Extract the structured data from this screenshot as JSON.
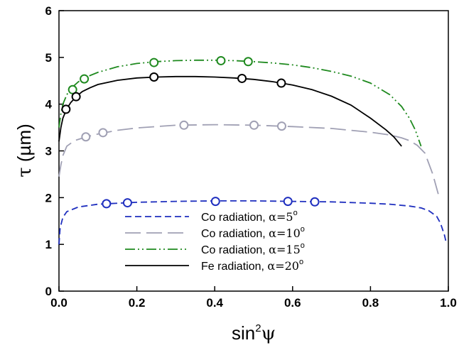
{
  "chart_data": {
    "type": "line",
    "title": "",
    "xlabel": {
      "base": "sin",
      "sup": "2",
      "symbol": "ψ"
    },
    "ylabel": {
      "symbol": "τ",
      "unit": "(µm)"
    },
    "xlim": [
      0.0,
      1.0
    ],
    "ylim": [
      0,
      6
    ],
    "xticks": [
      "0.0",
      "0.2",
      "0.4",
      "0.6",
      "0.8",
      "1.0"
    ],
    "yticks": [
      "0",
      "1",
      "2",
      "3",
      "4",
      "5",
      "6"
    ],
    "grid": false,
    "legend_position": "bottom-center",
    "series": [
      {
        "name": "Co radiation, α=5°",
        "legend_prefix": "Co radiation, ",
        "legend_alpha": "α=5",
        "legend_sup": "o",
        "color": "#1f2fbf",
        "dash": "dashed",
        "line": {
          "x": [
            0.0,
            0.003,
            0.01,
            0.02,
            0.05,
            0.1,
            0.2,
            0.3,
            0.4,
            0.5,
            0.6,
            0.7,
            0.8,
            0.85,
            0.9,
            0.93,
            0.95,
            0.97,
            0.98,
            0.99,
            0.995
          ],
          "y": [
            1.0,
            1.35,
            1.58,
            1.7,
            1.8,
            1.86,
            1.9,
            1.92,
            1.93,
            1.93,
            1.92,
            1.91,
            1.88,
            1.86,
            1.82,
            1.78,
            1.72,
            1.6,
            1.45,
            1.2,
            1.02
          ]
        },
        "markers": {
          "x": [
            0.122,
            0.176,
            0.402,
            0.588,
            0.657
          ],
          "y": [
            1.87,
            1.89,
            1.92,
            1.92,
            1.91
          ]
        }
      },
      {
        "name": "Co radiation, α=10°",
        "legend_prefix": "Co radiation, ",
        "legend_alpha": "α=10",
        "legend_sup": "o",
        "color": "#a0a0b4",
        "dash": "longdash",
        "line": {
          "x": [
            0.0,
            0.005,
            0.01,
            0.02,
            0.04,
            0.07,
            0.1,
            0.15,
            0.2,
            0.3,
            0.4,
            0.5,
            0.6,
            0.7,
            0.8,
            0.85,
            0.88,
            0.9,
            0.92,
            0.94,
            0.96,
            0.975
          ],
          "y": [
            2.45,
            2.7,
            2.9,
            3.1,
            3.22,
            3.3,
            3.36,
            3.44,
            3.49,
            3.55,
            3.56,
            3.55,
            3.52,
            3.48,
            3.4,
            3.34,
            3.28,
            3.22,
            3.12,
            2.95,
            2.5,
            2.05
          ]
        },
        "markers": {
          "x": [
            0.069,
            0.113,
            0.321,
            0.501,
            0.572
          ],
          "y": [
            3.3,
            3.39,
            3.55,
            3.55,
            3.53
          ]
        }
      },
      {
        "name": "Co radiation, α=15°",
        "legend_prefix": "Co radiation, ",
        "legend_alpha": "α=15",
        "legend_sup": "o",
        "color": "#1f8a1f",
        "dash": "dashdotdot",
        "line": {
          "x": [
            0.0,
            0.005,
            0.01,
            0.02,
            0.03,
            0.05,
            0.07,
            0.1,
            0.15,
            0.2,
            0.25,
            0.3,
            0.35,
            0.4,
            0.45,
            0.5,
            0.55,
            0.6,
            0.65,
            0.7,
            0.75,
            0.8,
            0.85,
            0.88,
            0.9,
            0.915,
            0.93
          ],
          "y": [
            3.5,
            3.8,
            4.0,
            4.2,
            4.33,
            4.48,
            4.58,
            4.68,
            4.8,
            4.87,
            4.91,
            4.93,
            4.94,
            4.94,
            4.93,
            4.91,
            4.88,
            4.84,
            4.78,
            4.7,
            4.6,
            4.45,
            4.2,
            3.95,
            3.7,
            3.45,
            3.1
          ]
        },
        "markers": {
          "x": [
            0.035,
            0.065,
            0.244,
            0.416,
            0.486
          ],
          "y": [
            4.31,
            4.54,
            4.89,
            4.93,
            4.91
          ]
        }
      },
      {
        "name": "Fe radiation, α=20°",
        "legend_prefix": "Fe radiation, ",
        "legend_alpha": "α=20",
        "legend_sup": "o",
        "color": "#000000",
        "dash": "solid",
        "line": {
          "x": [
            0.0,
            0.005,
            0.01,
            0.02,
            0.03,
            0.045,
            0.06,
            0.08,
            0.1,
            0.15,
            0.2,
            0.25,
            0.3,
            0.35,
            0.4,
            0.45,
            0.5,
            0.55,
            0.6,
            0.65,
            0.7,
            0.75,
            0.8,
            0.84,
            0.86,
            0.88
          ],
          "y": [
            3.2,
            3.5,
            3.7,
            3.9,
            4.03,
            4.17,
            4.27,
            4.35,
            4.42,
            4.51,
            4.56,
            4.58,
            4.59,
            4.59,
            4.58,
            4.56,
            4.53,
            4.48,
            4.41,
            4.31,
            4.17,
            3.98,
            3.7,
            3.45,
            3.3,
            3.1
          ]
        },
        "markers": {
          "x": [
            0.018,
            0.044,
            0.244,
            0.47,
            0.571
          ],
          "y": [
            3.89,
            4.16,
            4.58,
            4.55,
            4.45
          ]
        }
      }
    ]
  }
}
